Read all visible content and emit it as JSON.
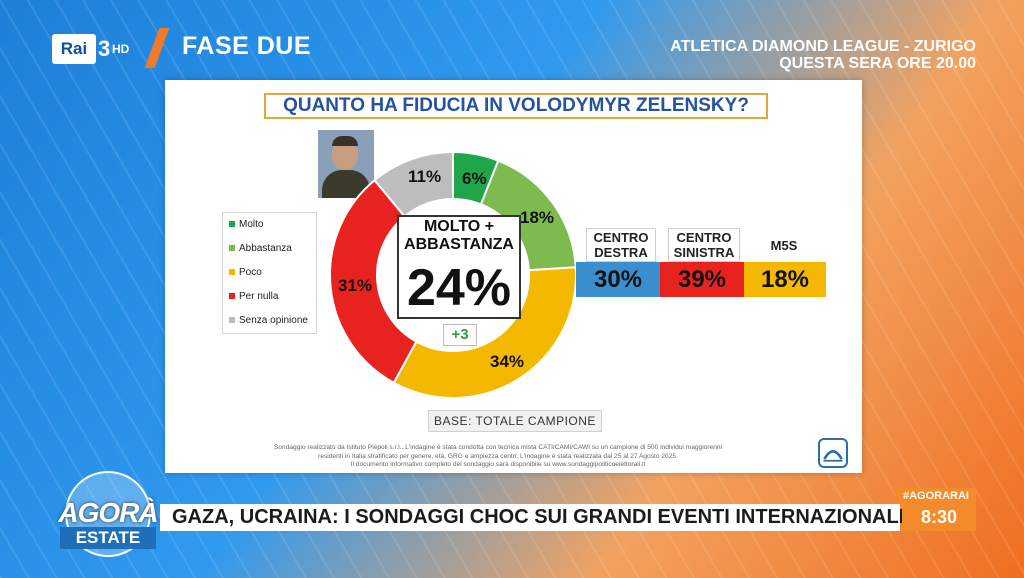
{
  "channel": {
    "name": "Rai",
    "number": "3",
    "quality": "HD"
  },
  "program": {
    "title": "FASE DUE"
  },
  "promo": {
    "line1": "ATLETICA DIAMOND LEAGUE - ZURIGO",
    "line2": "QUESTA SERA ORE 20.00"
  },
  "poll": {
    "question": "QUANTO HA FIDUCIA IN VOLODYMYR ZELENSKY?",
    "center_title_1": "MOLTO +",
    "center_title_2": "ABBASTANZA",
    "center_value": "24%",
    "center_delta": "+3",
    "legend": [
      {
        "label": "Molto",
        "color": "#1fa64a"
      },
      {
        "label": "Abbastanza",
        "color": "#7dbb4f"
      },
      {
        "label": "Poco",
        "color": "#f5b800"
      },
      {
        "label": "Per nulla",
        "color": "#e8231f"
      },
      {
        "label": "Senza opinione",
        "color": "#bdbdbd"
      }
    ],
    "base": "BASE: TOTALE CAMPIONE",
    "footnote_1": "Sondaggio realizzato da Istituto Piepoli s.r.l.. L'indagine è stata condotta con tecnica mista CATI/CAMI/CAWI su un campione di 500 individui maggiorenni",
    "footnote_2": "residenti in Italia stratificato per genere, età, GRG e ampiezza centri. L'indagine è stata realizzata dal 25 al 27 Agosto 2025.",
    "footnote_3": "Il documento informativo completo del sondaggio sarà disponibile su www.sondaggipoliticoelettorali.it",
    "parties": [
      {
        "name_1": "CENTRO",
        "name_2": "DESTRA",
        "value": "30%",
        "color": "#3a8fcf"
      },
      {
        "name_1": "CENTRO",
        "name_2": "SINISTRA",
        "value": "39%",
        "color": "#e8231f"
      },
      {
        "name_1": "M5S",
        "name_2": "",
        "value": "18%",
        "color": "#f5b800"
      }
    ]
  },
  "chart_data": {
    "type": "pie",
    "title": "QUANTO HA FIDUCIA IN VOLODYMYR ZELENSKY?",
    "categories": [
      "Molto",
      "Abbastanza",
      "Poco",
      "Per nulla",
      "Senza opinione"
    ],
    "values": [
      6,
      18,
      34,
      31,
      11
    ],
    "labels": [
      "6%",
      "18%",
      "34%",
      "31%",
      "11%"
    ],
    "colors": [
      "#1fa64a",
      "#7dbb4f",
      "#f5b800",
      "#e8231f",
      "#bdbdbd"
    ]
  },
  "ticker": {
    "hashtag": "#AGORARAI",
    "headline": "GAZA, UCRAINA: I SONDAGGI CHOC SUI GRANDI EVENTI INTERNAZIONALI",
    "time": "8:30"
  },
  "show": {
    "name": "AGORÀ",
    "edition": "ESTATE"
  }
}
